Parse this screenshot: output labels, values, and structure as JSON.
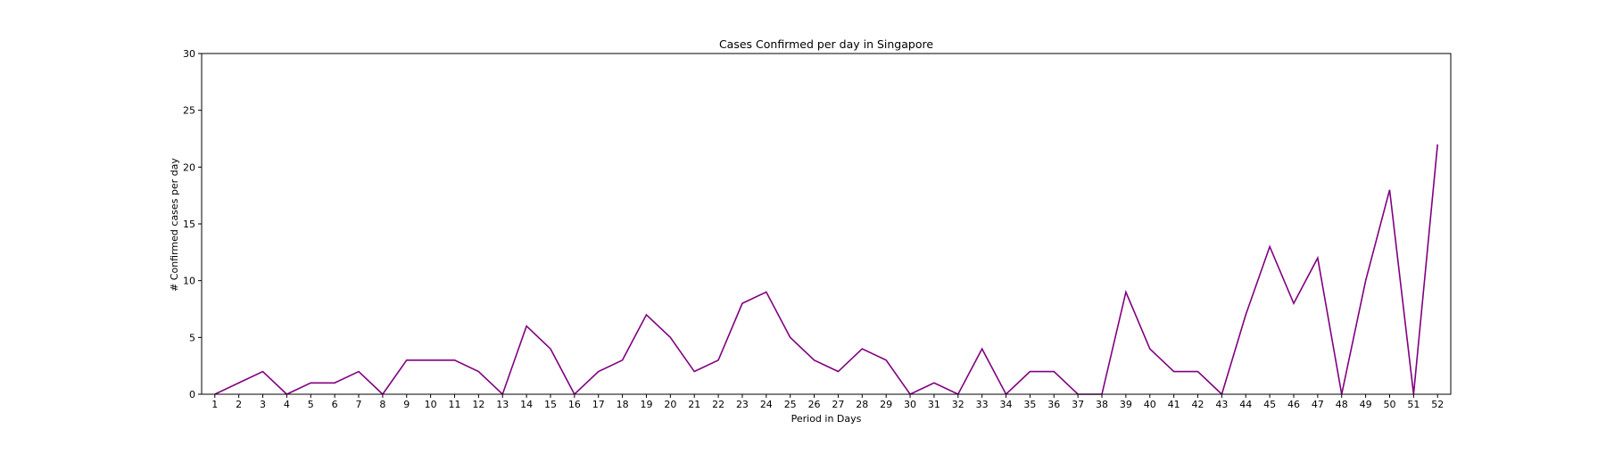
{
  "chart_data": {
    "type": "line",
    "title": "Cases Confirmed per day in Singapore",
    "xlabel": "Period in Days",
    "ylabel": "# Confirmed cases per day",
    "ylim": [
      0,
      30
    ],
    "yticks": [
      0,
      5,
      10,
      15,
      20,
      25,
      30
    ],
    "grid": false,
    "line_color": "#800080",
    "series": [
      {
        "x": [
          1,
          2,
          3,
          4,
          5,
          6,
          7,
          8,
          9,
          10,
          11,
          12,
          13,
          14,
          15,
          16,
          17,
          18,
          19,
          20,
          21,
          22,
          23,
          24,
          25,
          26,
          27,
          28,
          29,
          30,
          31,
          32,
          33,
          34,
          35,
          36,
          37,
          38,
          39,
          40,
          41,
          42,
          43,
          44,
          45,
          46,
          47,
          48,
          49,
          50,
          51,
          52
        ],
        "values": [
          0,
          1,
          2,
          0,
          1,
          1,
          2,
          0,
          3,
          3,
          3,
          2,
          0,
          6,
          4,
          0,
          2,
          3,
          7,
          5,
          2,
          3,
          8,
          9,
          5,
          3,
          2,
          4,
          3,
          0,
          1,
          0,
          4,
          0,
          2,
          2,
          0,
          0,
          9,
          4,
          2,
          2,
          0,
          7,
          13,
          8,
          12,
          0,
          10,
          18,
          0,
          22
        ]
      }
    ]
  }
}
